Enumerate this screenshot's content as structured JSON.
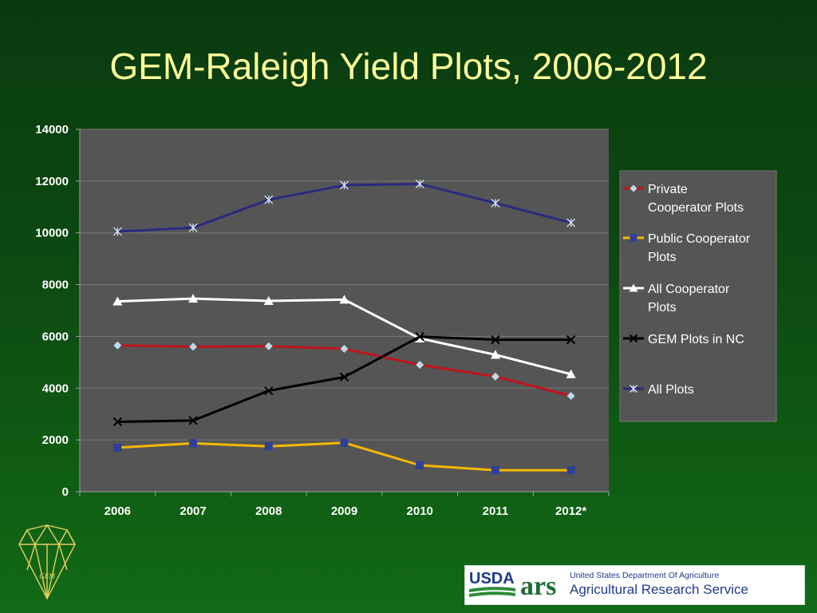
{
  "title": "GEM-Raleigh Yield Plots, 2006-2012",
  "chart_data": {
    "type": "line",
    "categories": [
      "2006",
      "2007",
      "2008",
      "2009",
      "2010",
      "2011",
      "2012*"
    ],
    "ylim": [
      0,
      14000
    ],
    "yticks": [
      0,
      2000,
      4000,
      6000,
      8000,
      10000,
      12000,
      14000
    ],
    "grid": true,
    "legend_position": "right",
    "series": [
      {
        "name": "Private Cooperator Plots",
        "color": "#c0141b",
        "marker": "diamond",
        "marker_color": "#b8dce8",
        "values": [
          5650,
          5600,
          5620,
          5520,
          4900,
          4450,
          3700
        ]
      },
      {
        "name": "Public Cooperator Plots",
        "color": "#f5b800",
        "marker": "square",
        "marker_color": "#2e3f9a",
        "values": [
          1700,
          1870,
          1750,
          1890,
          1020,
          830,
          830
        ]
      },
      {
        "name": "All Cooperator Plots",
        "color": "#ffffff",
        "marker": "triangle",
        "marker_color": "#ffffff",
        "values": [
          7350,
          7460,
          7370,
          7420,
          5920,
          5290,
          4540
        ]
      },
      {
        "name": "GEM Plots in NC",
        "color": "#000000",
        "marker": "x",
        "marker_color": "#000000",
        "values": [
          2700,
          2750,
          3900,
          4430,
          5990,
          5870,
          5870
        ]
      },
      {
        "name": "All Plots",
        "color": "#2a2a80",
        "marker": "star",
        "marker_color": "#d8e8ff",
        "values": [
          10050,
          10200,
          11280,
          11840,
          11890,
          11150,
          10390
        ]
      }
    ]
  },
  "icons": {
    "gem_logo": "diamond-net-icon",
    "usda_logo": "usda-logo",
    "ars_logo": "ars-logo"
  },
  "logo_text": {
    "gem": "GEM",
    "usda": "USDA",
    "ars": "ars"
  },
  "footer": {
    "dept": "United States Department Of Agriculture",
    "service": "Agricultural Research Service"
  }
}
